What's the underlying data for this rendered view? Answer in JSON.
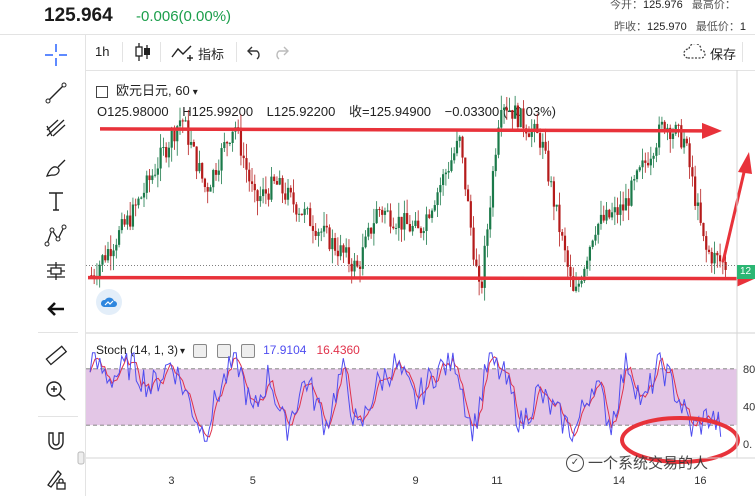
{
  "header": {
    "price": "125.964",
    "change": "-0.006(0.00%)",
    "today_open_label": "今开：",
    "today_open": "125.976",
    "high_label": "最高价：",
    "prev_close_label": "昨收：",
    "prev_close": "125.970",
    "low_label": "最低价：",
    "low_value": "1"
  },
  "toolbar": {
    "interval": "1h",
    "indicators_label": "指标",
    "save_label": "保存"
  },
  "colors": {
    "up": "#1b7a4a",
    "down": "#b51b1b",
    "arrow": "#e8323a",
    "stoch_k": "#4f4df0",
    "stoch_d": "#e0324b",
    "stoch_band": "#d9b3dd",
    "change": "#1b9e4b"
  },
  "chart_data": [
    {
      "type": "candlestick",
      "symbol": "欧元日元",
      "timeframe": "60",
      "ohlc_legend": {
        "open": "O125.98000",
        "high": "H125.99200",
        "low": "L125.92200",
        "close": "收=125.94900",
        "change": "−0.03300 (−0.03%)"
      },
      "price_label": "12",
      "x_tick_labels": [
        "3",
        "5",
        "9",
        "11",
        "14",
        "16"
      ],
      "price_anchors": [
        {
          "day": 1.0,
          "price": 124.8
        },
        {
          "day": 2.0,
          "price": 125.3
        },
        {
          "day": 3.2,
          "price": 126.1
        },
        {
          "day": 3.8,
          "price": 125.5
        },
        {
          "day": 4.5,
          "price": 126.05
        },
        {
          "day": 5.0,
          "price": 125.4
        },
        {
          "day": 5.5,
          "price": 125.55
        },
        {
          "day": 6.5,
          "price": 125.2
        },
        {
          "day": 7.5,
          "price": 124.85
        },
        {
          "day": 8.0,
          "price": 125.35
        },
        {
          "day": 9.0,
          "price": 125.15
        },
        {
          "day": 10.0,
          "price": 125.9
        },
        {
          "day": 10.5,
          "price": 124.6
        },
        {
          "day": 11.0,
          "price": 126.25
        },
        {
          "day": 12.0,
          "price": 125.9
        },
        {
          "day": 12.8,
          "price": 124.6
        },
        {
          "day": 13.3,
          "price": 125.2
        },
        {
          "day": 14.0,
          "price": 125.35
        },
        {
          "day": 15.0,
          "price": 126.05
        },
        {
          "day": 15.5,
          "price": 125.9
        },
        {
          "day": 16.0,
          "price": 125.0
        },
        {
          "day": 16.5,
          "price": 124.88
        }
      ],
      "annotations": {
        "upper_arrow_price": 126.0,
        "lower_arrow_price": 124.78,
        "dotted_line_price": 124.88
      }
    },
    {
      "type": "line",
      "indicator_label": "Stoch (14, 1, 3)",
      "k_value": "17.9104",
      "d_value": "16.4360",
      "ylim": [
        0,
        100
      ],
      "band": [
        20,
        80
      ],
      "y_tick_labels": [
        "80",
        "40",
        "0."
      ],
      "k_anchors": [
        {
          "day": 1.0,
          "value": 90
        },
        {
          "day": 1.5,
          "value": 70
        },
        {
          "day": 2.0,
          "value": 85
        },
        {
          "day": 2.5,
          "value": 60
        },
        {
          "day": 3.0,
          "value": 88
        },
        {
          "day": 3.5,
          "value": 40
        },
        {
          "day": 3.8,
          "value": 10
        },
        {
          "day": 4.2,
          "value": 60
        },
        {
          "day": 4.6,
          "value": 92
        },
        {
          "day": 5.0,
          "value": 30
        },
        {
          "day": 5.4,
          "value": 75
        },
        {
          "day": 5.8,
          "value": 15
        },
        {
          "day": 6.3,
          "value": 70
        },
        {
          "day": 6.8,
          "value": 20
        },
        {
          "day": 7.2,
          "value": 80
        },
        {
          "day": 7.6,
          "value": 10
        },
        {
          "day": 8.0,
          "value": 60
        },
        {
          "day": 8.5,
          "value": 85
        },
        {
          "day": 9.0,
          "value": 45
        },
        {
          "day": 9.5,
          "value": 78
        },
        {
          "day": 10.0,
          "value": 90
        },
        {
          "day": 10.4,
          "value": 8
        },
        {
          "day": 10.8,
          "value": 90
        },
        {
          "day": 11.2,
          "value": 70
        },
        {
          "day": 11.6,
          "value": 20
        },
        {
          "day": 12.0,
          "value": 55
        },
        {
          "day": 12.5,
          "value": 30
        },
        {
          "day": 12.9,
          "value": 12
        },
        {
          "day": 13.4,
          "value": 70
        },
        {
          "day": 13.8,
          "value": 20
        },
        {
          "day": 14.2,
          "value": 90
        },
        {
          "day": 14.6,
          "value": 40
        },
        {
          "day": 15.0,
          "value": 88
        },
        {
          "day": 15.4,
          "value": 55
        },
        {
          "day": 15.8,
          "value": 15
        },
        {
          "day": 16.2,
          "value": 30
        },
        {
          "day": 16.5,
          "value": 18
        }
      ]
    }
  ],
  "watermark": "一个系统交易的人"
}
